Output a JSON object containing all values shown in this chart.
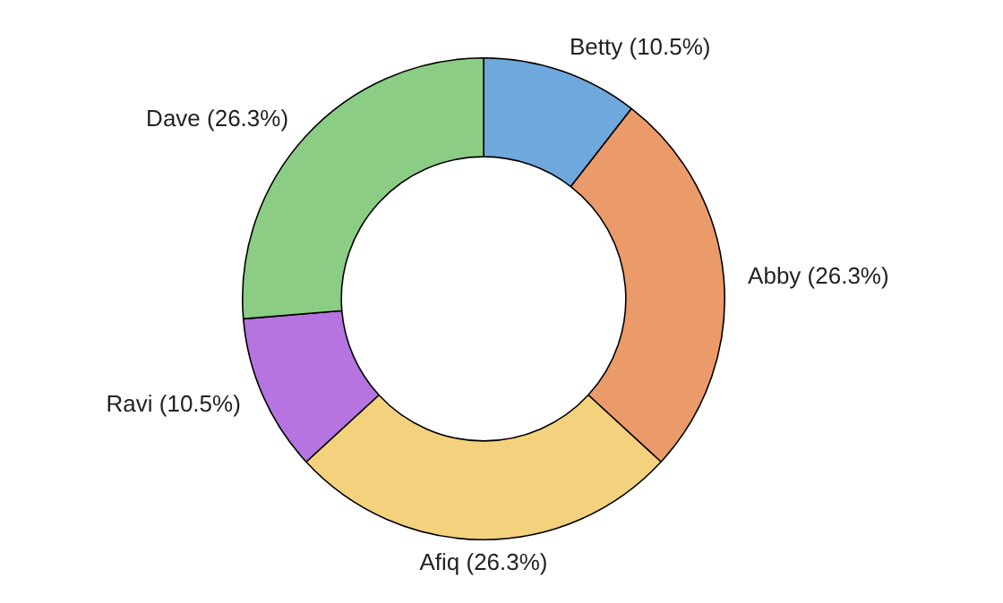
{
  "chart_data": {
    "type": "donut",
    "categories": [
      "Betty",
      "Abby",
      "Afiq",
      "Ravi",
      "Dave"
    ],
    "values": [
      10.5,
      26.3,
      26.3,
      10.5,
      26.3
    ],
    "value_labels": [
      "(10.5%)",
      "(26.3%)",
      "(26.3%)",
      "(10.5%)",
      "(26.3%)"
    ],
    "colors": [
      "#6fa8dc",
      "#eb9b6a",
      "#f4d17c",
      "#b574e0",
      "#8bcd84"
    ],
    "legend": false
  }
}
